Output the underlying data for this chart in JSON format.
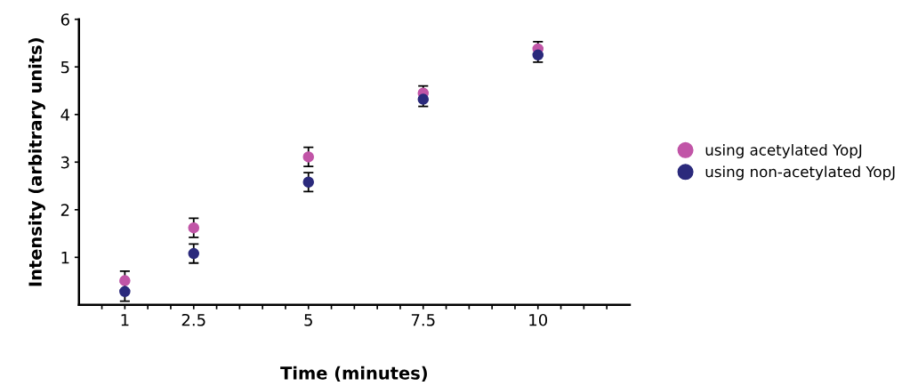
{
  "chart_data": {
    "type": "scatter",
    "xlabel": "Time (minutes)",
    "ylabel": "Intensity (arbitrary units)",
    "xlim": [
      0,
      12
    ],
    "ylim": [
      0,
      6
    ],
    "xticks": [
      {
        "value": 0.5,
        "label": null
      },
      1,
      {
        "value": 1.5,
        "label": null
      },
      {
        "value": 2,
        "label": null
      },
      2.5,
      {
        "value": 3,
        "label": null
      },
      {
        "value": 3.5,
        "label": null
      },
      {
        "value": 4,
        "label": null
      },
      {
        "value": 4.5,
        "label": null
      },
      5,
      {
        "value": 5.5,
        "label": null
      },
      {
        "value": 6,
        "label": null
      },
      {
        "value": 6.5,
        "label": null
      },
      {
        "value": 7,
        "label": null
      },
      7.5,
      {
        "value": 8,
        "label": null
      },
      {
        "value": 8.5,
        "label": null
      },
      {
        "value": 9,
        "label": null
      },
      {
        "value": 9.5,
        "label": null
      },
      10,
      {
        "value": 10.5,
        "label": null
      },
      {
        "value": 11,
        "label": null
      },
      {
        "value": 11.5,
        "label": null
      }
    ],
    "yticks": [
      1,
      2,
      3,
      4,
      5,
      6
    ],
    "x": [
      1,
      2.5,
      5,
      7.5,
      10
    ],
    "series": [
      {
        "name": "using acetylated YopJ",
        "color": "#c155a7",
        "values": [
          0.51,
          1.62,
          3.11,
          4.45,
          5.38
        ],
        "errors": [
          0.2,
          0.2,
          0.2,
          0.15,
          0.15
        ]
      },
      {
        "name": "using non-acetylated YopJ",
        "color": "#2b2a7c",
        "values": [
          0.28,
          1.08,
          2.58,
          4.32,
          5.25
        ],
        "errors": [
          0.2,
          0.2,
          0.2,
          0.15,
          0.15
        ]
      }
    ],
    "marker": "circle",
    "grid": false,
    "legend": "right"
  }
}
